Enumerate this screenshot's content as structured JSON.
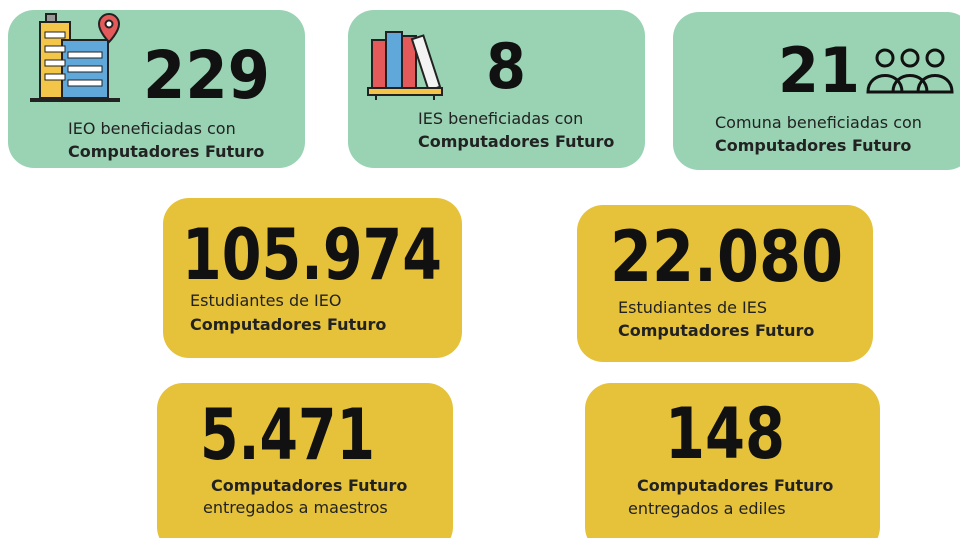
{
  "cards": [
    {
      "number": "229",
      "lines": [
        {
          "text": "IEO beneficiadas con",
          "bold": false
        },
        {
          "text": "Computadores Futuro",
          "bold": true
        }
      ]
    },
    {
      "number": "8",
      "lines": [
        {
          "text": "IES beneficiadas con",
          "bold": false
        },
        {
          "text": "Computadores Futuro",
          "bold": true
        }
      ]
    },
    {
      "number": "21",
      "lines": [
        {
          "text": "Comuna beneficiadas con",
          "bold": false
        },
        {
          "text": "Computadores Futuro",
          "bold": true
        }
      ]
    },
    {
      "number": "105.974",
      "lines": [
        {
          "text": "Estudiantes de IEO",
          "bold": false
        },
        {
          "text": "Computadores Futuro",
          "bold": true
        }
      ]
    },
    {
      "number": "22.080",
      "lines": [
        {
          "text": "Estudiantes de IES",
          "bold": false
        },
        {
          "text": "Computadores Futuro",
          "bold": true
        }
      ]
    },
    {
      "number": "5.471",
      "lines": [
        {
          "text": "Computadores Futuro",
          "bold": true
        },
        {
          "text": "entregados a maestros",
          "bold": false
        }
      ]
    },
    {
      "number": "148",
      "lines": [
        {
          "text": "Computadores Futuro",
          "bold": true
        },
        {
          "text": "entregados a ediles",
          "bold": false
        }
      ]
    }
  ]
}
